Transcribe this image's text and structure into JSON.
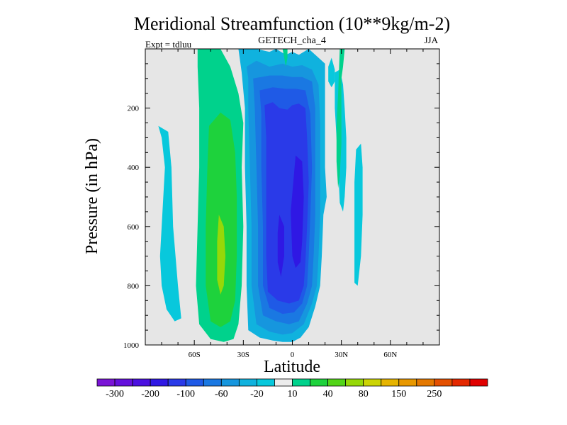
{
  "chart_data": {
    "type": "heatmap",
    "subtype": "filled-contour",
    "title": "Meridional Streamfunction (10**9kg/m-2)",
    "subtitle_center": "GETECH_cha_4",
    "subtitle_left": "Expt = tdluu",
    "subtitle_right": "JJA",
    "xlabel": "Latitude",
    "ylabel": "Pressure (in hPa)",
    "xlim": [
      -90,
      90
    ],
    "ylim": [
      1000,
      0
    ],
    "y_reversed": true,
    "x_ticks": [
      {
        "value": -60,
        "label": "60S"
      },
      {
        "value": -30,
        "label": "30S"
      },
      {
        "value": 0,
        "label": "0"
      },
      {
        "value": 30,
        "label": "30N"
      },
      {
        "value": 60,
        "label": "60N"
      }
    ],
    "y_ticks": [
      {
        "value": 200,
        "label": "200"
      },
      {
        "value": 400,
        "label": "400"
      },
      {
        "value": 600,
        "label": "600"
      },
      {
        "value": 800,
        "label": "800"
      },
      {
        "value": 1000,
        "label": "1000"
      }
    ],
    "background_color": "#e6e6e6",
    "colorbar": {
      "colors": [
        "#7a14d6",
        "#6410dc",
        "#4b10e0",
        "#2f18e4",
        "#2a3ae8",
        "#1f5ae6",
        "#1a78e2",
        "#1696de",
        "#10b2de",
        "#08c8dc",
        "#ececec",
        "#00d28c",
        "#1ed23c",
        "#52d418",
        "#96d808",
        "#ccd404",
        "#e6b400",
        "#e89800",
        "#e47800",
        "#e45000",
        "#e42800",
        "#e00000"
      ],
      "labels": [
        {
          "after_box": 1,
          "label": "-300"
        },
        {
          "after_box": 3,
          "label": "-200"
        },
        {
          "after_box": 5,
          "label": "-100"
        },
        {
          "after_box": 7,
          "label": "-60"
        },
        {
          "after_box": 9,
          "label": "-20"
        },
        {
          "after_box": 11,
          "label": "10"
        },
        {
          "after_box": 13,
          "label": "40"
        },
        {
          "after_box": 15,
          "label": "80"
        },
        {
          "after_box": 17,
          "label": "150"
        },
        {
          "after_box": 19,
          "label": "250"
        }
      ]
    },
    "features": [
      {
        "name": "cyan-cell-60s",
        "color": "#08c8dc",
        "points": [
          [
            -82,
            260
          ],
          [
            -80,
            300
          ],
          [
            -78,
            400
          ],
          [
            -79,
            500
          ],
          [
            -80,
            600
          ],
          [
            -81,
            700
          ],
          [
            -80,
            800
          ],
          [
            -77,
            880
          ],
          [
            -72,
            920
          ],
          [
            -68,
            910
          ],
          [
            -70,
            800
          ],
          [
            -73,
            600
          ],
          [
            -74,
            400
          ],
          [
            -76,
            280
          ]
        ]
      },
      {
        "name": "teal-cell-40s-upper",
        "color": "#00d28c",
        "points": [
          [
            -58,
            0
          ],
          [
            -44,
            0
          ],
          [
            -38,
            60
          ],
          [
            -33,
            150
          ],
          [
            -30,
            250
          ],
          [
            -31,
            400
          ],
          [
            -30,
            600
          ],
          [
            -31,
            800
          ],
          [
            -33,
            930
          ],
          [
            -36,
            980
          ],
          [
            -42,
            990
          ],
          [
            -50,
            980
          ],
          [
            -57,
            930
          ],
          [
            -59,
            800
          ],
          [
            -58,
            600
          ],
          [
            -57,
            400
          ],
          [
            -57,
            200
          ],
          [
            -58,
            60
          ]
        ]
      },
      {
        "name": "green-cell-40s",
        "color": "#1ed23c",
        "points": [
          [
            -51,
            260
          ],
          [
            -44,
            215
          ],
          [
            -38,
            240
          ],
          [
            -35,
            350
          ],
          [
            -34,
            500
          ],
          [
            -34,
            700
          ],
          [
            -35,
            850
          ],
          [
            -38,
            920
          ],
          [
            -44,
            940
          ],
          [
            -50,
            920
          ],
          [
            -53,
            800
          ],
          [
            -53,
            600
          ],
          [
            -52,
            400
          ]
        ]
      },
      {
        "name": "yellowgreen-core-40s",
        "color": "#96d808",
        "points": [
          [
            -45,
            560
          ],
          [
            -42,
            600
          ],
          [
            -41,
            700
          ],
          [
            -42,
            800
          ],
          [
            -44,
            830
          ],
          [
            -46,
            780
          ],
          [
            -46,
            650
          ]
        ]
      },
      {
        "name": "cyan-shell-eq",
        "color": "#10b2de",
        "points": [
          [
            -33,
            0
          ],
          [
            -28,
            0
          ],
          [
            -22,
            0
          ],
          [
            -14,
            10
          ],
          [
            -10,
            0
          ],
          [
            -4,
            20
          ],
          [
            0,
            10
          ],
          [
            4,
            20
          ],
          [
            10,
            0
          ],
          [
            16,
            30
          ],
          [
            20,
            50
          ],
          [
            20,
            120
          ],
          [
            20,
            250
          ],
          [
            20,
            400
          ],
          [
            21,
            500
          ],
          [
            19,
            560
          ],
          [
            18,
            700
          ],
          [
            17,
            800
          ],
          [
            14,
            870
          ],
          [
            10,
            940
          ],
          [
            5,
            975
          ],
          [
            0,
            990
          ],
          [
            -6,
            990
          ],
          [
            -12,
            985
          ],
          [
            -20,
            975
          ],
          [
            -27,
            950
          ],
          [
            -28,
            800
          ],
          [
            -28,
            600
          ],
          [
            -29,
            400
          ],
          [
            -29,
            200
          ],
          [
            -31,
            80
          ]
        ]
      },
      {
        "name": "lightblue-eq",
        "color": "#1696de",
        "points": [
          [
            -28,
            60
          ],
          [
            -22,
            40
          ],
          [
            -14,
            60
          ],
          [
            -6,
            50
          ],
          [
            0,
            60
          ],
          [
            6,
            55
          ],
          [
            12,
            70
          ],
          [
            16,
            120
          ],
          [
            17,
            250
          ],
          [
            17,
            400
          ],
          [
            17,
            560
          ],
          [
            16,
            700
          ],
          [
            15,
            800
          ],
          [
            12,
            860
          ],
          [
            7,
            930
          ],
          [
            0,
            960
          ],
          [
            -6,
            965
          ],
          [
            -14,
            955
          ],
          [
            -22,
            930
          ],
          [
            -25,
            800
          ],
          [
            -25,
            600
          ],
          [
            -26,
            400
          ],
          [
            -27,
            200
          ],
          [
            -27,
            100
          ]
        ]
      },
      {
        "name": "blue-eq",
        "color": "#1a78e2",
        "points": [
          [
            -24,
            100
          ],
          [
            -14,
            90
          ],
          [
            -6,
            90
          ],
          [
            0,
            95
          ],
          [
            6,
            95
          ],
          [
            12,
            110
          ],
          [
            14,
            200
          ],
          [
            14,
            400
          ],
          [
            14,
            560
          ],
          [
            13,
            700
          ],
          [
            12,
            800
          ],
          [
            9,
            860
          ],
          [
            4,
            920
          ],
          [
            -2,
            930
          ],
          [
            -10,
            920
          ],
          [
            -18,
            900
          ],
          [
            -21,
            800
          ],
          [
            -21,
            600
          ],
          [
            -22,
            400
          ],
          [
            -23,
            200
          ]
        ]
      },
      {
        "name": "midblue-eq",
        "color": "#1f5ae6",
        "points": [
          [
            -20,
            140
          ],
          [
            -12,
            130
          ],
          [
            -4,
            135
          ],
          [
            2,
            135
          ],
          [
            8,
            140
          ],
          [
            11,
            220
          ],
          [
            12,
            400
          ],
          [
            11,
            560
          ],
          [
            10,
            700
          ],
          [
            9,
            800
          ],
          [
            6,
            860
          ],
          [
            1,
            890
          ],
          [
            -6,
            895
          ],
          [
            -14,
            875
          ],
          [
            -18,
            800
          ],
          [
            -18,
            600
          ],
          [
            -19,
            400
          ],
          [
            -19,
            220
          ]
        ]
      },
      {
        "name": "deep-blue-eq",
        "color": "#2a3ae8",
        "points": [
          [
            -17,
            190
          ],
          [
            -12,
            180
          ],
          [
            -8,
            200
          ],
          [
            -3,
            205
          ],
          [
            0,
            190
          ],
          [
            4,
            185
          ],
          [
            8,
            200
          ],
          [
            9,
            300
          ],
          [
            10,
            450
          ],
          [
            9,
            600
          ],
          [
            8,
            720
          ],
          [
            7,
            800
          ],
          [
            4,
            850
          ],
          [
            -2,
            860
          ],
          [
            -9,
            850
          ],
          [
            -15,
            820
          ],
          [
            -16,
            700
          ],
          [
            -16,
            500
          ],
          [
            -16,
            300
          ]
        ]
      },
      {
        "name": "indigo-core-a",
        "color": "#2f18e4",
        "points": [
          [
            2,
            360
          ],
          [
            6,
            380
          ],
          [
            7,
            500
          ],
          [
            6,
            650
          ],
          [
            5,
            720
          ],
          [
            2,
            740
          ],
          [
            0,
            700
          ],
          [
            -1,
            550
          ]
        ]
      },
      {
        "name": "indigo-core-b",
        "color": "#2f18e4",
        "points": [
          [
            -8,
            560
          ],
          [
            -5,
            600
          ],
          [
            -5,
            700
          ],
          [
            -7,
            770
          ],
          [
            -9,
            720
          ],
          [
            -9,
            620
          ]
        ]
      },
      {
        "name": "cyan-ridge-25n",
        "color": "#08c8dc",
        "points": [
          [
            26,
            80
          ],
          [
            29,
            70
          ],
          [
            31,
            120
          ],
          [
            32,
            200
          ],
          [
            33,
            300
          ],
          [
            33,
            400
          ],
          [
            32,
            500
          ],
          [
            31,
            550
          ],
          [
            29,
            520
          ],
          [
            28,
            400
          ],
          [
            27,
            300
          ],
          [
            26,
            200
          ]
        ]
      },
      {
        "name": "teal-ridge-30n",
        "color": "#00d28c",
        "points": [
          [
            29,
            0
          ],
          [
            32,
            0
          ],
          [
            31,
            60
          ],
          [
            30,
            100
          ],
          [
            30,
            200
          ],
          [
            30,
            320
          ],
          [
            29,
            430
          ],
          [
            28,
            470
          ],
          [
            27,
            380
          ],
          [
            27,
            260
          ],
          [
            28,
            150
          ]
        ]
      },
      {
        "name": "cyan-patch-40n",
        "color": "#08c8dc",
        "points": [
          [
            39,
            340
          ],
          [
            42,
            320
          ],
          [
            43,
            400
          ],
          [
            43,
            560
          ],
          [
            42,
            700
          ],
          [
            40,
            800
          ],
          [
            38,
            790
          ],
          [
            38,
            600
          ],
          [
            38,
            450
          ]
        ]
      },
      {
        "name": "cyan-stub-20n",
        "color": "#08c8dc",
        "points": [
          [
            22,
            60
          ],
          [
            24,
            30
          ],
          [
            26,
            70
          ],
          [
            26,
            110
          ],
          [
            24,
            130
          ],
          [
            22,
            110
          ]
        ]
      },
      {
        "name": "teal-drip-eq",
        "color": "#00d28c",
        "points": [
          [
            -6,
            0
          ],
          [
            -3,
            0
          ],
          [
            -3,
            30
          ],
          [
            -4,
            60
          ],
          [
            -5,
            30
          ]
        ]
      }
    ]
  }
}
